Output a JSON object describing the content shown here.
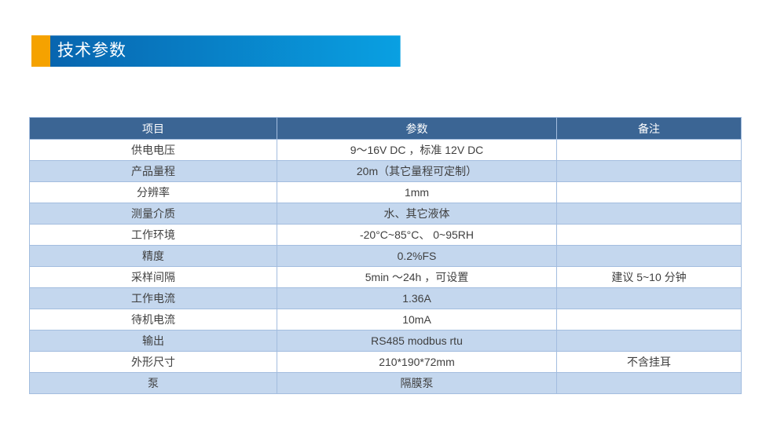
{
  "slide": {
    "title": "技术参数",
    "colors": {
      "accent_orange": "#F5A200",
      "banner_gradient_start": "#0865AF",
      "banner_gradient_end": "#09A0E2"
    }
  },
  "table": {
    "colors": {
      "header_bg": "#3B6594",
      "alt_row_bg": "#C4D7EE",
      "border": "#A3BDDF"
    },
    "columns": [
      "项目",
      "参数",
      "备注"
    ],
    "rows": [
      {
        "item": "供电电压",
        "param": "9～16V DC ，标准 12V DC",
        "remark": ""
      },
      {
        "item": "产品量程",
        "param": "20m（其它量程可定制）",
        "remark": ""
      },
      {
        "item": "分辨率",
        "param": "1mm",
        "remark": ""
      },
      {
        "item": "测量介质",
        "param": "水、其它液体",
        "remark": ""
      },
      {
        "item": "工作环境",
        "param": "-20°C~85°C、 0~95RH",
        "remark": ""
      },
      {
        "item": "精度",
        "param": "0.2%FS",
        "remark": ""
      },
      {
        "item": "采样间隔",
        "param": "5min ～24h ，可设置",
        "remark": "建议 5~10 分钟"
      },
      {
        "item": "工作电流",
        "param": "1.36A",
        "remark": ""
      },
      {
        "item": "待机电流",
        "param": "10mA",
        "remark": ""
      },
      {
        "item": "输出",
        "param": "RS485  modbus rtu",
        "remark": ""
      },
      {
        "item": "外形尺寸",
        "param": "210*190*72mm",
        "remark": "不含挂耳"
      },
      {
        "item": "泵",
        "param": "隔膜泵",
        "remark": ""
      }
    ]
  }
}
